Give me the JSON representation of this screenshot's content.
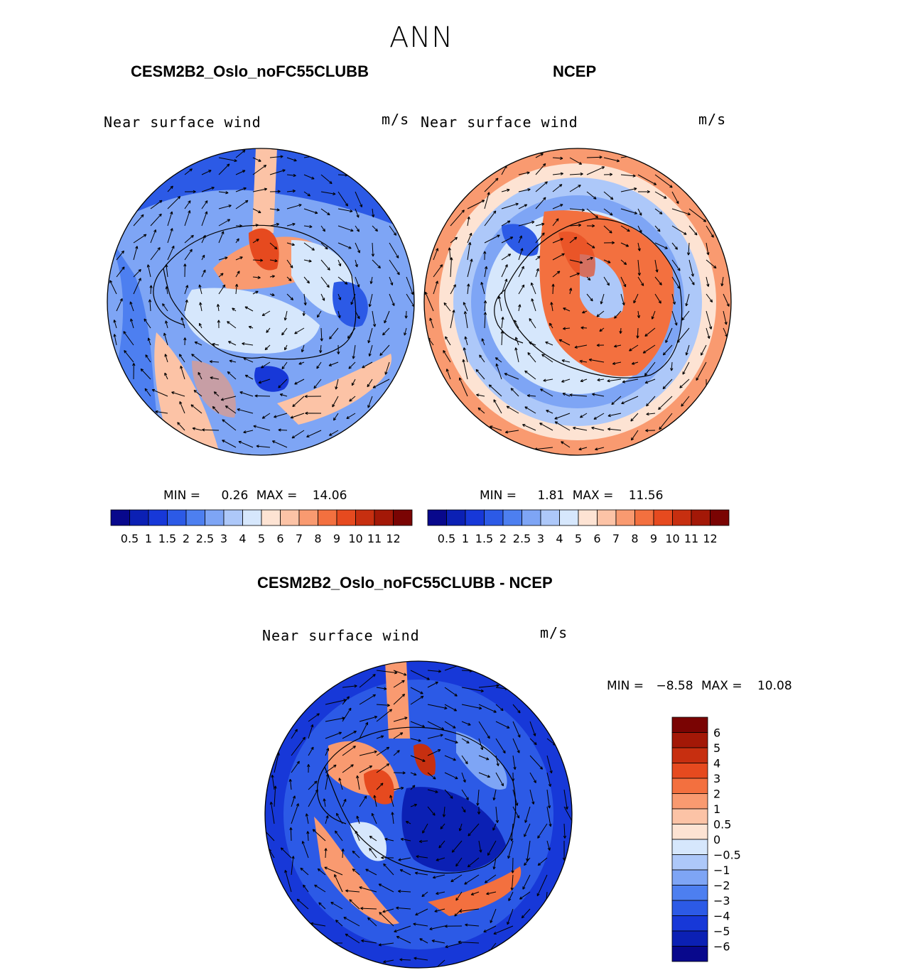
{
  "figure": {
    "season": "ANN",
    "left_title": "CESM2B2_Oslo_noFC55CLUBB",
    "right_title": "NCEP",
    "diff_title": "CESM2B2_Oslo_noFC55CLUBB - NCEP"
  },
  "chart_data": [
    {
      "type": "heatmap",
      "projection": "south-polar-stereographic",
      "title": "CESM2B2_Oslo_noFC55CLUBB",
      "variable": "Near surface wind",
      "units": "m/s",
      "min_label": "MIN =",
      "max_label": "MAX =",
      "min": "0.26",
      "max": "14.06",
      "colorbar_ticks": [
        "0.5",
        "1",
        "1.5",
        "2",
        "2.5",
        "3",
        "4",
        "5",
        "6",
        "7",
        "8",
        "9",
        "10",
        "11",
        "12"
      ],
      "palette": [
        "#08088c",
        "#0b20b4",
        "#1738d8",
        "#2c5ae6",
        "#4d7ff0",
        "#7ea5f5",
        "#adc8f9",
        "#d6e7fc",
        "#fde3d3",
        "#fcc3a6",
        "#f99a70",
        "#f3703f",
        "#e64a1f",
        "#c72f10",
        "#a31807",
        "#7a0403"
      ]
    },
    {
      "type": "heatmap",
      "projection": "south-polar-stereographic",
      "title": "NCEP",
      "variable": "Near surface wind",
      "units": "m/s",
      "min_label": "MIN =",
      "max_label": "MAX =",
      "min": "1.81",
      "max": "11.56",
      "colorbar_ticks": [
        "0.5",
        "1",
        "1.5",
        "2",
        "2.5",
        "3",
        "4",
        "5",
        "6",
        "7",
        "8",
        "9",
        "10",
        "11",
        "12"
      ],
      "palette": [
        "#08088c",
        "#0b20b4",
        "#1738d8",
        "#2c5ae6",
        "#4d7ff0",
        "#7ea5f5",
        "#adc8f9",
        "#d6e7fc",
        "#fde3d3",
        "#fcc3a6",
        "#f99a70",
        "#f3703f",
        "#e64a1f",
        "#c72f10",
        "#a31807",
        "#7a0403"
      ]
    },
    {
      "type": "heatmap",
      "projection": "south-polar-stereographic",
      "title": "CESM2B2_Oslo_noFC55CLUBB - NCEP",
      "variable": "Near surface wind",
      "units": "m/s",
      "min_label": "MIN =",
      "max_label": "MAX =",
      "min": "−8.58",
      "max": "10.08",
      "colorbar_ticks": [
        "6",
        "5",
        "4",
        "3",
        "2",
        "1",
        "0.5",
        "0",
        "−0.5",
        "−1",
        "−2",
        "−3",
        "−4",
        "−5",
        "−6"
      ],
      "palette": [
        "#7a0403",
        "#a31807",
        "#c72f10",
        "#e64a1f",
        "#f3703f",
        "#f99a70",
        "#fcc3a6",
        "#fde3d3",
        "#d6e7fc",
        "#adc8f9",
        "#7ea5f5",
        "#4d7ff0",
        "#2c5ae6",
        "#1738d8",
        "#0b20b4",
        "#08088c"
      ]
    }
  ]
}
